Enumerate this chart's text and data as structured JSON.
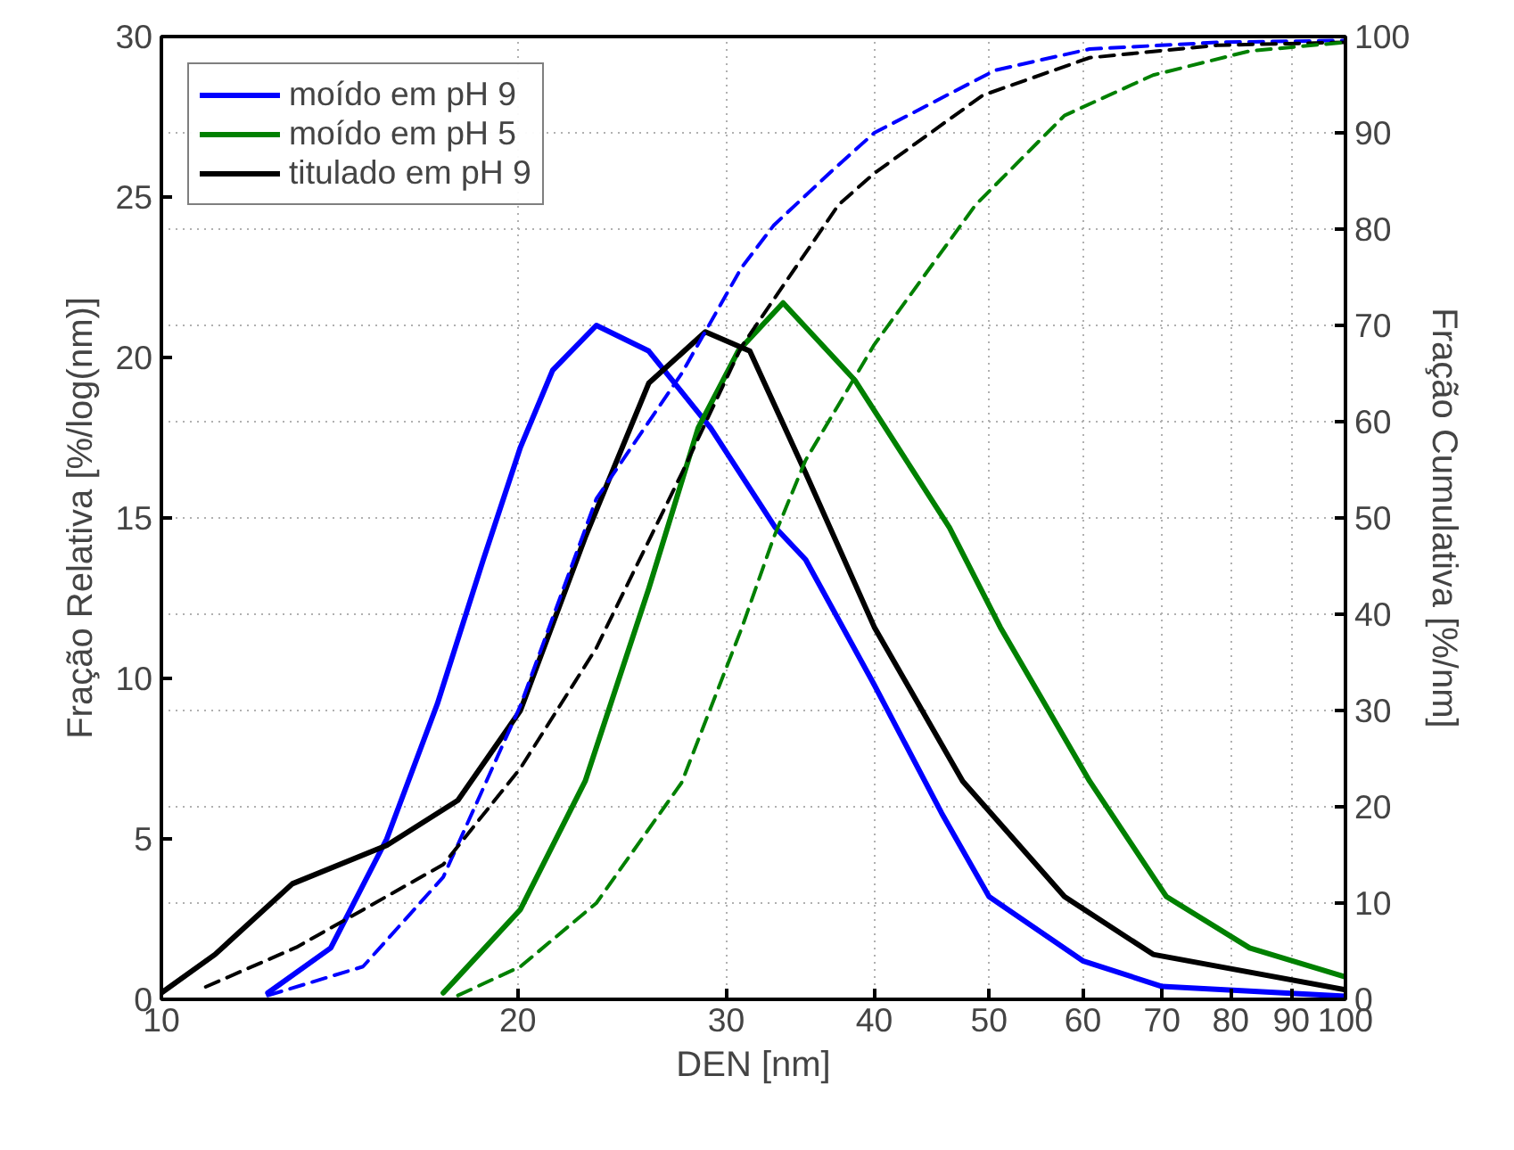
{
  "chart_data": {
    "type": "line",
    "xlabel": "DEN [nm]",
    "ylabel": "Fração Relativa [%/log(nm)]",
    "y2label": "Fração Cumulativa [%/nm]",
    "log": "x",
    "grid": true,
    "legend": "top left",
    "line_style": "solid",
    "marker": "none",
    "xlim": [
      10,
      100
    ],
    "xticks": [
      10,
      20,
      30,
      40,
      50,
      60,
      70,
      80,
      90,
      100
    ],
    "ylim": [
      0,
      30
    ],
    "yticks": [
      0,
      5,
      10,
      15,
      20,
      25,
      30
    ],
    "y2lim": [
      0,
      100
    ],
    "y2ticks": [
      0,
      10,
      20,
      30,
      40,
      50,
      60,
      70,
      80,
      90,
      100
    ],
    "series": [
      {
        "name": "moído em pH 9",
        "color": "#0000ff",
        "x": [
          12.3,
          13.9,
          15.5,
          17.1,
          18.7,
          20.1,
          21.4,
          23.3,
          25.8,
          29.1,
          33.0,
          35.0,
          40,
          45.6,
          50,
          60,
          70,
          100
        ],
        "values": [
          0.2,
          1.6,
          5.0,
          9.2,
          13.7,
          17.2,
          19.6,
          21.0,
          20.2,
          17.8,
          14.7,
          13.7,
          9.8,
          5.8,
          3.2,
          1.2,
          0.4,
          0.1
        ]
      },
      {
        "name": "moído em pH 5",
        "color": "#008000",
        "x": [
          17.3,
          20.1,
          22.8,
          25.8,
          28.4,
          30.7,
          33.5,
          38.5,
          46.3,
          51.1,
          60.8,
          70.6,
          83,
          100
        ],
        "values": [
          0.2,
          2.8,
          6.8,
          12.8,
          17.8,
          20.2,
          21.7,
          19.3,
          14.7,
          11.6,
          6.8,
          3.2,
          1.6,
          0.7
        ]
      },
      {
        "name": "titulado em pH 9",
        "color": "#000000",
        "x": [
          10,
          11.1,
          12.9,
          15.5,
          17.8,
          20.1,
          22.8,
          25.8,
          28.8,
          31.4,
          35,
          40,
          47.5,
          57.9,
          68.8,
          100
        ],
        "values": [
          0.2,
          1.4,
          3.6,
          4.8,
          6.2,
          9.0,
          14.4,
          19.2,
          20.8,
          20.2,
          16.4,
          11.6,
          6.8,
          3.2,
          1.4,
          0.3
        ]
      },
      {
        "color": "#0000ff",
        "axis": "y2",
        "line_style": "dashed",
        "x": [
          12.3,
          14.8,
          17.3,
          20.1,
          23.3,
          27.5,
          30.9,
          32.9,
          36.8,
          40,
          50.6,
          60.8,
          78,
          100
        ],
        "values": [
          0.4,
          3.4,
          12.7,
          30.5,
          52,
          65,
          76,
          80.4,
          86,
          90,
          96.5,
          98.7,
          99.4,
          99.6
        ]
      },
      {
        "color": "#000000",
        "axis": "y2",
        "line_style": "dashed",
        "x": [
          10.9,
          13.0,
          17.3,
          20.1,
          23.3,
          27.5,
          30.9,
          37.3,
          40,
          49.4,
          60.8,
          78,
          100
        ],
        "values": [
          1.3,
          5.4,
          14,
          24,
          36.5,
          54.6,
          67.8,
          82.5,
          85.8,
          93.9,
          97.8,
          99.1,
          99.4
        ]
      },
      {
        "color": "#008000",
        "axis": "y2",
        "line_style": "dashed",
        "x": [
          17.8,
          20.1,
          23.3,
          27.5,
          30.9,
          32.9,
          35,
          40,
          48.7,
          57.9,
          68.8,
          83,
          100
        ],
        "values": [
          0.4,
          3.4,
          10,
          22.5,
          38.5,
          48,
          56,
          68,
          82.5,
          91.8,
          96,
          98.5,
          99.4
        ]
      }
    ]
  }
}
